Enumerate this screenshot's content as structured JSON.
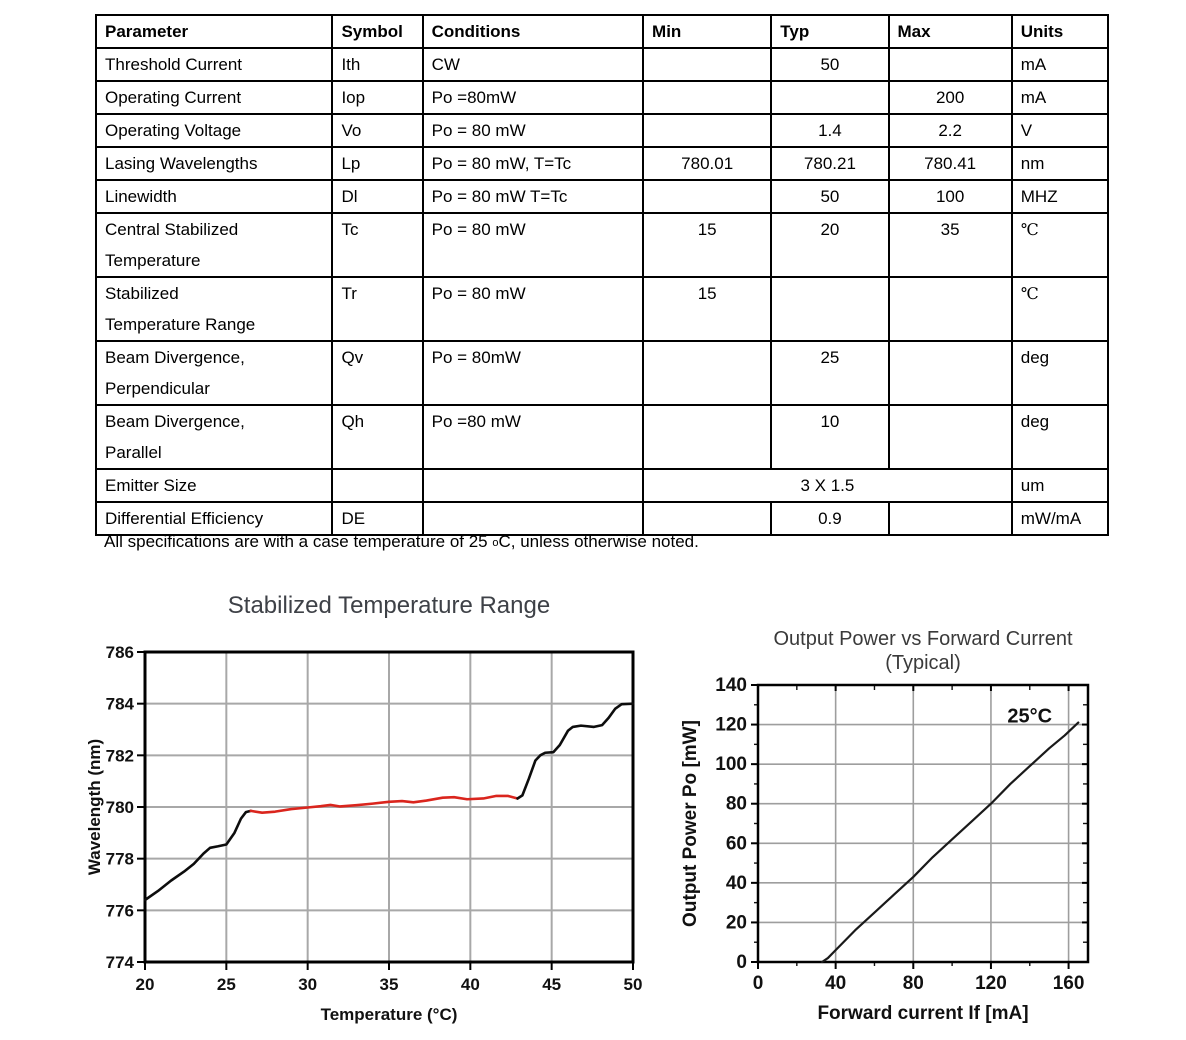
{
  "table": {
    "headers": [
      "Parameter",
      "Symbol",
      "Conditions",
      "Min",
      "Typ",
      "Max",
      "Units"
    ],
    "rows": [
      {
        "parameter": "Threshold Current",
        "symbol": "Ith",
        "conditions": "CW",
        "min": "",
        "typ": "50",
        "max": "",
        "units": "mA"
      },
      {
        "parameter": "Operating Current",
        "symbol": "Iop",
        "conditions": "Po =80mW",
        "min": "",
        "typ": "",
        "max": "200",
        "units": "mA"
      },
      {
        "parameter": "Operating Voltage",
        "symbol": "Vo",
        "conditions": "Po = 80 mW",
        "min": "",
        "typ": "1.4",
        "max": "2.2",
        "units": "V"
      },
      {
        "parameter": "Lasing Wavelengths",
        "symbol": "Lp",
        "conditions": "Po = 80 mW, T=Tc",
        "min": "780.01",
        "typ": "780.21",
        "max": "780.41",
        "units": "nm"
      },
      {
        "parameter": "Linewidth",
        "symbol": "Dl",
        "conditions": "Po = 80 mW T=Tc",
        "min": "",
        "typ": "50",
        "max": "100",
        "units": "MHZ"
      },
      {
        "parameter": [
          "Central Stabilized",
          "Temperature"
        ],
        "symbol": "Tc",
        "conditions": "Po = 80 mW",
        "min": "15",
        "typ": "20",
        "max": "35",
        "units": "℃"
      },
      {
        "parameter": [
          "Stabilized",
          "Temperature Range"
        ],
        "symbol": "Tr",
        "conditions": "Po = 80 mW",
        "min": "15",
        "typ": "",
        "max": "",
        "units": "℃"
      },
      {
        "parameter": [
          "Beam Divergence,",
          "Perpendicular"
        ],
        "symbol": "Qv",
        "conditions": "Po = 80mW",
        "min": "",
        "typ": "25",
        "max": "",
        "units": "deg"
      },
      {
        "parameter": [
          "Beam Divergence,",
          "Parallel"
        ],
        "symbol": "Qh",
        "conditions": "Po =80 mW",
        "min": "",
        "typ": "10",
        "max": "",
        "units": "deg"
      },
      {
        "parameter": "Emitter Size",
        "symbol": "",
        "conditions": "",
        "merged": "3 X 1.5",
        "units": "um"
      },
      {
        "parameter": "Differential Efficiency",
        "symbol": "DE",
        "conditions": "",
        "min": "",
        "typ": "0.9",
        "max": "",
        "units": "mW/mA"
      }
    ],
    "note_pre": "All specifications are with a case temperature of 25 ",
    "note_sub": "o",
    "note_post": "C, unless otherwise noted."
  },
  "chart_data": [
    {
      "type": "line",
      "title": "Stabilized Temperature Range",
      "title_color": "#3e4147",
      "xlabel": "Temperature (°C)",
      "ylabel": "Wavelength (nm)",
      "xlim": [
        20,
        50
      ],
      "ylim": [
        774,
        786
      ],
      "xticks": [
        20,
        25,
        30,
        35,
        40,
        45,
        50
      ],
      "yticks": [
        774,
        776,
        778,
        780,
        782,
        784,
        786
      ],
      "grid": true,
      "grid_color": "#a8a8a8",
      "legend": "none",
      "series": [
        {
          "name": "wavelength-lower",
          "color": "#0d0d0d",
          "points": [
            [
              20,
              776.4
            ],
            [
              20.8,
              776.75
            ],
            [
              21.6,
              777.15
            ],
            [
              22.4,
              777.5
            ],
            [
              23,
              777.8
            ],
            [
              23.6,
              778.2
            ],
            [
              24,
              778.42
            ],
            [
              24.5,
              778.48
            ],
            [
              25,
              778.55
            ],
            [
              25.5,
              779.0
            ],
            [
              25.9,
              779.55
            ],
            [
              26.2,
              779.8
            ],
            [
              26.5,
              779.85
            ]
          ]
        },
        {
          "name": "stabilized-range",
          "color": "#da251d",
          "points": [
            [
              26.5,
              779.85
            ],
            [
              27.2,
              779.78
            ],
            [
              28,
              779.82
            ],
            [
              29,
              779.92
            ],
            [
              30,
              779.98
            ],
            [
              30.8,
              780.03
            ],
            [
              31.4,
              780.08
            ],
            [
              32,
              780.02
            ],
            [
              33,
              780.07
            ],
            [
              34,
              780.13
            ],
            [
              35,
              780.2
            ],
            [
              35.8,
              780.23
            ],
            [
              36.5,
              780.18
            ],
            [
              37.3,
              780.25
            ],
            [
              38.3,
              780.36
            ],
            [
              39,
              780.38
            ],
            [
              39.8,
              780.3
            ],
            [
              40.8,
              780.33
            ],
            [
              41.6,
              780.43
            ],
            [
              42.3,
              780.43
            ],
            [
              42.9,
              780.33
            ]
          ]
        },
        {
          "name": "wavelength-upper",
          "color": "#0d0d0d",
          "points": [
            [
              42.9,
              780.33
            ],
            [
              43.2,
              780.45
            ],
            [
              43.6,
              781.1
            ],
            [
              44,
              781.8
            ],
            [
              44.3,
              782.0
            ],
            [
              44.6,
              782.1
            ],
            [
              45.1,
              782.12
            ],
            [
              45.5,
              782.4
            ],
            [
              46,
              782.95
            ],
            [
              46.3,
              783.1
            ],
            [
              46.8,
              783.15
            ],
            [
              47.6,
              783.1
            ],
            [
              48.1,
              783.17
            ],
            [
              48.5,
              783.45
            ],
            [
              48.9,
              783.8
            ],
            [
              49.3,
              783.98
            ],
            [
              50,
              784.0
            ]
          ]
        }
      ]
    },
    {
      "type": "line",
      "title": "Output Power vs Forward Current",
      "subtitle": "(Typical)",
      "title_color": "#3a3a3a",
      "xlabel": "Forward current If [mA]",
      "ylabel": "Output Power Po [mW]",
      "xlim": [
        0,
        170
      ],
      "ylim": [
        0,
        140
      ],
      "xticks": [
        0,
        40,
        80,
        120,
        160
      ],
      "yticks": [
        0,
        20,
        40,
        60,
        80,
        100,
        120,
        140
      ],
      "grid": true,
      "grid_color": "#9e9e9e",
      "legend": "none",
      "annotation": {
        "text": "25°C",
        "x": 140,
        "y": 121
      },
      "series": [
        {
          "name": "output-power-25C",
          "color": "#1a1a1a",
          "points": [
            [
              33,
              0
            ],
            [
              36,
              2
            ],
            [
              40,
              6
            ],
            [
              50,
              16
            ],
            [
              60,
              25
            ],
            [
              70,
              34
            ],
            [
              80,
              43
            ],
            [
              90,
              53
            ],
            [
              100,
              62
            ],
            [
              110,
              71
            ],
            [
              120,
              80
            ],
            [
              130,
              90
            ],
            [
              140,
              99
            ],
            [
              150,
              108
            ],
            [
              158,
              114.5
            ],
            [
              165,
              121
            ]
          ]
        }
      ]
    }
  ]
}
